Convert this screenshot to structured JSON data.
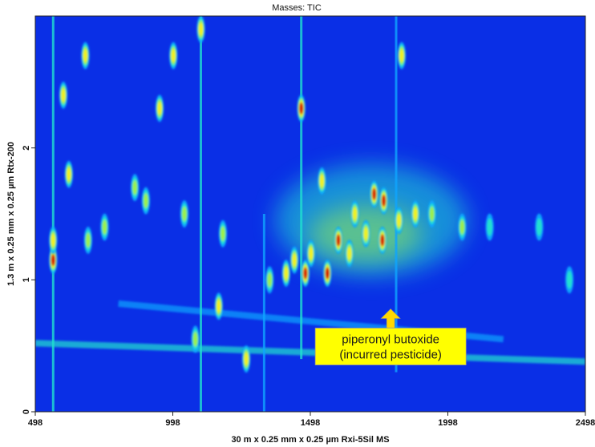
{
  "chart_data": {
    "type": "heatmap",
    "title": "Masses:  TIC",
    "xlabel": "30 m x 0.25 mm x 0.25 µm Rxi-5Sil MS",
    "ylabel": "1.3 m x 0.25 mm x 0.25 µm Rtx-200",
    "xlim": [
      498,
      2498
    ],
    "ylim": [
      0,
      3
    ],
    "x_ticks": [
      498,
      998,
      1498,
      1998,
      2498
    ],
    "x_tick_labels": [
      "498",
      "998",
      "1498",
      "1998",
      "2498"
    ],
    "y_ticks": [
      0,
      1,
      2
    ],
    "y_tick_labels": [
      "0",
      "1",
      "2"
    ],
    "background_color": "#0a2fe6",
    "colormap": [
      "#1040f0",
      "#0fa5ff",
      "#20e0d0",
      "#9cf04a",
      "#f0f020",
      "#d60000"
    ],
    "annotation": {
      "line1": "piperonyl butoxide",
      "line2": "(incurred pesticide)",
      "x": 1790,
      "y": 0.78,
      "box_color": "#ffff00",
      "arrow_color": "#ffd800"
    },
    "streaks": [
      {
        "x": 563,
        "y0": 0.0,
        "y1": 3.0,
        "intensity": 0.95
      },
      {
        "x": 1100,
        "y0": 0.0,
        "y1": 3.0,
        "intensity": 0.6
      },
      {
        "x": 1465,
        "y0": 0.4,
        "y1": 3.0,
        "intensity": 0.7
      },
      {
        "x": 1810,
        "y0": 0.3,
        "y1": 3.0,
        "intensity": 0.5
      },
      {
        "x": 1330,
        "y0": 0.0,
        "y1": 1.5,
        "intensity": 0.5
      }
    ],
    "bands": [
      {
        "x0": 498,
        "y0": 0.52,
        "x1": 2498,
        "y1": 0.38,
        "intensity": 0.75
      },
      {
        "x0": 800,
        "y0": 0.82,
        "x1": 2200,
        "y1": 0.55,
        "intensity": 0.35
      }
    ],
    "spots": [
      {
        "x": 563,
        "y": 1.15,
        "intensity": 1.0
      },
      {
        "x": 563,
        "y": 1.3,
        "intensity": 0.8
      },
      {
        "x": 600,
        "y": 2.4,
        "intensity": 0.85
      },
      {
        "x": 620,
        "y": 1.8,
        "intensity": 0.8
      },
      {
        "x": 680,
        "y": 2.7,
        "intensity": 0.7
      },
      {
        "x": 690,
        "y": 1.3,
        "intensity": 0.65
      },
      {
        "x": 750,
        "y": 1.4,
        "intensity": 0.55
      },
      {
        "x": 860,
        "y": 1.7,
        "intensity": 0.6
      },
      {
        "x": 900,
        "y": 1.6,
        "intensity": 0.55
      },
      {
        "x": 950,
        "y": 2.3,
        "intensity": 0.8
      },
      {
        "x": 1000,
        "y": 2.7,
        "intensity": 0.75
      },
      {
        "x": 1040,
        "y": 1.5,
        "intensity": 0.55
      },
      {
        "x": 1080,
        "y": 0.55,
        "intensity": 0.6
      },
      {
        "x": 1100,
        "y": 2.9,
        "intensity": 0.75
      },
      {
        "x": 1165,
        "y": 0.8,
        "intensity": 0.75
      },
      {
        "x": 1180,
        "y": 1.35,
        "intensity": 0.55
      },
      {
        "x": 1265,
        "y": 0.4,
        "intensity": 0.85
      },
      {
        "x": 1350,
        "y": 1.0,
        "intensity": 0.55
      },
      {
        "x": 1410,
        "y": 1.05,
        "intensity": 0.7
      },
      {
        "x": 1440,
        "y": 1.15,
        "intensity": 0.75
      },
      {
        "x": 1465,
        "y": 2.3,
        "intensity": 0.9
      },
      {
        "x": 1480,
        "y": 1.05,
        "intensity": 0.9
      },
      {
        "x": 1500,
        "y": 1.2,
        "intensity": 0.85
      },
      {
        "x": 1540,
        "y": 1.75,
        "intensity": 0.8
      },
      {
        "x": 1560,
        "y": 1.05,
        "intensity": 0.95
      },
      {
        "x": 1600,
        "y": 1.3,
        "intensity": 0.9
      },
      {
        "x": 1640,
        "y": 1.2,
        "intensity": 0.85
      },
      {
        "x": 1660,
        "y": 1.5,
        "intensity": 0.7
      },
      {
        "x": 1700,
        "y": 1.35,
        "intensity": 0.75
      },
      {
        "x": 1730,
        "y": 1.65,
        "intensity": 0.9
      },
      {
        "x": 1760,
        "y": 1.3,
        "intensity": 1.0
      },
      {
        "x": 1765,
        "y": 1.6,
        "intensity": 0.9
      },
      {
        "x": 1820,
        "y": 1.45,
        "intensity": 0.7
      },
      {
        "x": 1830,
        "y": 2.7,
        "intensity": 0.8
      },
      {
        "x": 1880,
        "y": 1.5,
        "intensity": 0.85
      },
      {
        "x": 1940,
        "y": 1.5,
        "intensity": 0.6
      },
      {
        "x": 2050,
        "y": 1.4,
        "intensity": 0.5
      },
      {
        "x": 2150,
        "y": 1.4,
        "intensity": 0.45
      },
      {
        "x": 2330,
        "y": 1.4,
        "intensity": 0.45
      },
      {
        "x": 2440,
        "y": 1.0,
        "intensity": 0.45
      }
    ]
  }
}
